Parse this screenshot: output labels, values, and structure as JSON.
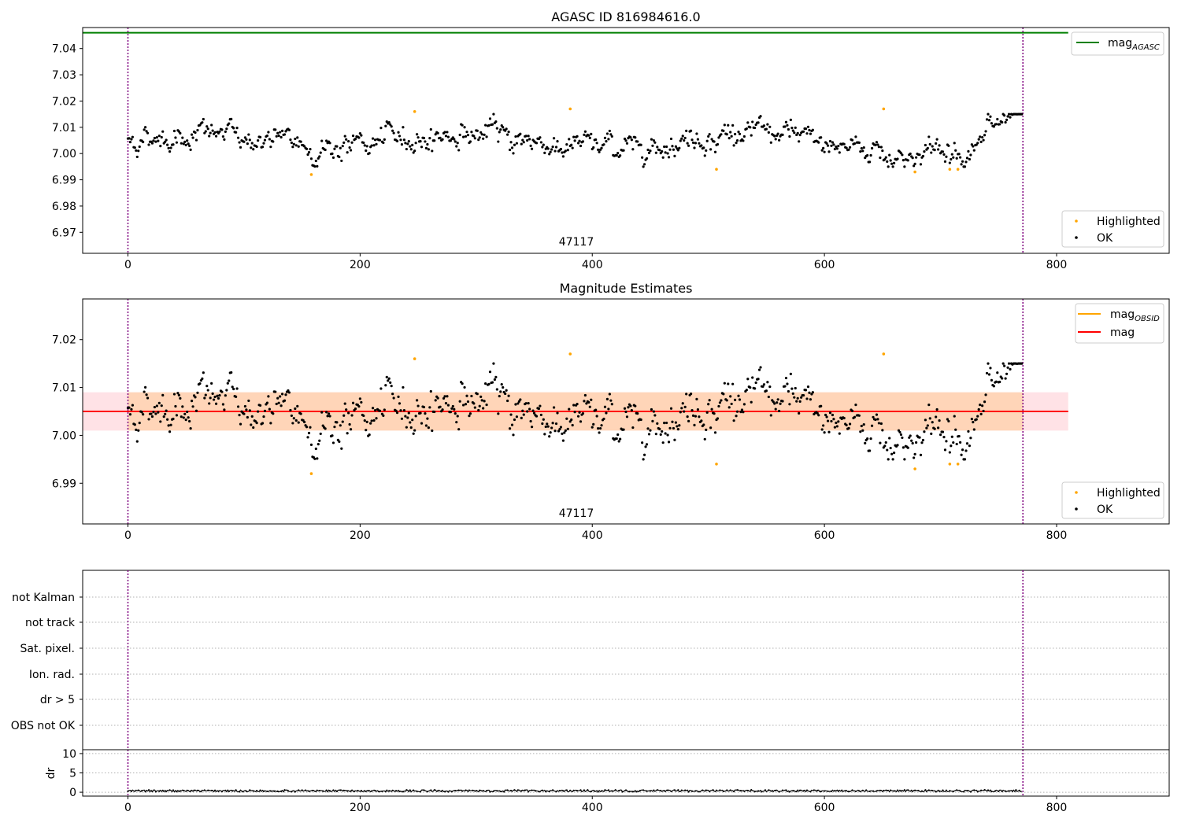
{
  "chart_data": [
    {
      "type": "scatter",
      "title": "AGASC ID 816984616.0",
      "ylim": [
        6.962,
        7.048
      ],
      "xlim": [
        -39,
        897
      ],
      "x_ticks": [
        0,
        200,
        400,
        600,
        800
      ],
      "y_ticks": [
        6.97,
        6.98,
        6.99,
        7.0,
        7.01,
        7.02,
        7.03,
        7.04
      ],
      "y_tick_labels": [
        "6.97",
        "6.98",
        "6.99",
        "7.00",
        "7.01",
        "7.02",
        "7.03",
        "7.04"
      ],
      "hline": {
        "name": "mag_AGASC",
        "value": 7.046,
        "color": "#008000"
      },
      "obsid_boundaries": [
        0,
        771
      ],
      "obsid_label": "47117",
      "legend_top": [
        {
          "label": "mag",
          "sub": "AGASC",
          "color": "#008000"
        }
      ],
      "legend_bottom": [
        {
          "label": "Highlighted",
          "color": "#ffa500"
        },
        {
          "label": "OK",
          "color": "#000000"
        }
      ],
      "highlighted_points": [
        [
          158,
          6.992
        ],
        [
          247,
          7.016
        ],
        [
          381,
          7.017
        ],
        [
          507,
          6.994
        ],
        [
          651,
          7.017
        ],
        [
          678,
          6.993
        ],
        [
          708,
          6.994
        ],
        [
          715,
          6.994
        ]
      ],
      "ok_series": {
        "n_points": 771,
        "range": [
          6.995,
          7.015
        ],
        "mean": 7.005
      }
    },
    {
      "type": "scatter",
      "title": "Magnitude Estimates",
      "ylim": [
        6.9815,
        7.0285
      ],
      "xlim": [
        -39,
        897
      ],
      "x_ticks": [
        0,
        200,
        400,
        600,
        800
      ],
      "y_ticks": [
        6.99,
        7.0,
        7.01,
        7.02
      ],
      "y_tick_labels": [
        "6.99",
        "7.00",
        "7.01",
        "7.02"
      ],
      "mag_line": {
        "value": 7.005,
        "color": "#ff0000"
      },
      "mag_band": {
        "low": 7.001,
        "high": 7.009,
        "x_end": 810
      },
      "obsid_band": {
        "low": 7.001,
        "high": 7.009,
        "x_start": 0,
        "x_end": 771
      },
      "obsid_boundaries": [
        0,
        771
      ],
      "obsid_label": "47117",
      "legend_top": [
        {
          "label": "mag",
          "sub": "OBSID",
          "color": "#ffa500"
        },
        {
          "label": "mag",
          "sub": "",
          "color": "#ff0000"
        }
      ],
      "legend_bottom": [
        {
          "label": "Highlighted",
          "color": "#ffa500"
        },
        {
          "label": "OK",
          "color": "#000000"
        }
      ],
      "highlighted_points": [
        [
          158,
          6.992
        ],
        [
          247,
          7.016
        ],
        [
          381,
          7.017
        ],
        [
          507,
          6.994
        ],
        [
          651,
          7.017
        ],
        [
          678,
          6.993
        ],
        [
          708,
          6.994
        ],
        [
          715,
          6.994
        ]
      ]
    },
    {
      "type": "scatter",
      "title": "",
      "flag_rows": [
        "not Kalman",
        "not track",
        "Sat. pixel.",
        "Ion. rad.",
        "dr > 5",
        "OBS not OK"
      ],
      "obsid_boundaries": [
        0,
        771
      ]
    },
    {
      "type": "line",
      "ylabel": "dr",
      "ylim": [
        -1,
        11
      ],
      "xlim": [
        -39,
        897
      ],
      "x_ticks": [
        0,
        200,
        400,
        600,
        800
      ],
      "y_ticks": [
        0,
        5,
        10
      ],
      "y_tick_labels": [
        "0",
        "5",
        "10"
      ],
      "dr_range": [
        0.1,
        0.6
      ],
      "obsid_boundaries": [
        0,
        771
      ]
    }
  ]
}
